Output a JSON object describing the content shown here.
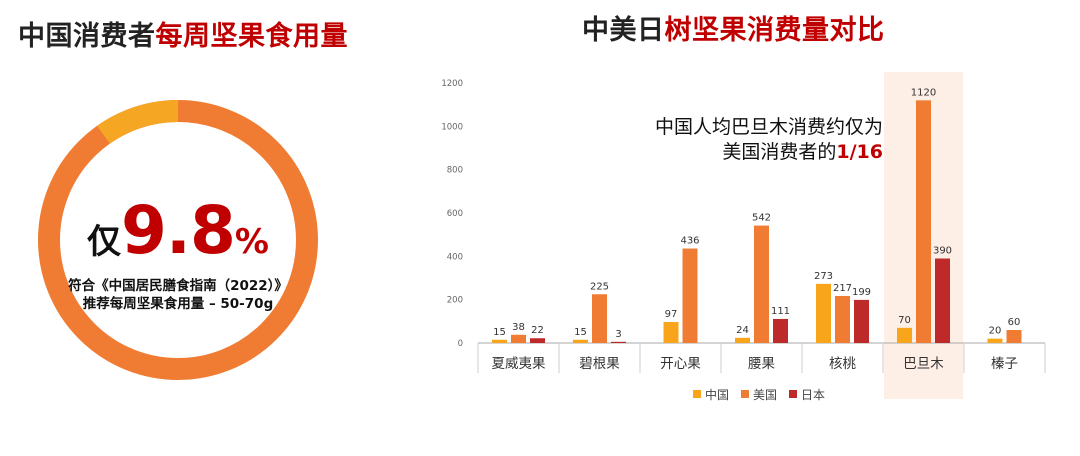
{
  "left": {
    "title_black": "中国消费者",
    "title_red": "每周坚果食用量",
    "prefix": "仅",
    "value": "9.8",
    "unit": "%",
    "guide_line1": "符合《中国居民膳食指南（2022）》",
    "guide_line2": "推荐每周坚果食用量 – 50-70g",
    "share": 9.8,
    "colors": {
      "share": "#f5a623",
      "rest": "#f07c33"
    }
  },
  "right": {
    "title_black": "中美日",
    "title_red": "树坚果消费量对比",
    "annotation_line1": "中国人均巴旦木消费约仅为",
    "annotation_line2_prefix": "美国消费者的",
    "annotation_line2_red": "1/16"
  },
  "chart_data": {
    "type": "bar",
    "categories": [
      "夏威夷果",
      "碧根果",
      "开心果",
      "腰果",
      "核桃",
      "巴旦木",
      "榛子"
    ],
    "series": [
      {
        "name": "中国",
        "color": "#f9a51b",
        "values": [
          15,
          15,
          97,
          24,
          273,
          70,
          20
        ]
      },
      {
        "name": "美国",
        "color": "#f07c33",
        "values": [
          38,
          225,
          436,
          542,
          217,
          1120,
          60
        ]
      },
      {
        "name": "日本",
        "color": "#be2a2a",
        "values": [
          22,
          3,
          null,
          111,
          199,
          390,
          null
        ]
      }
    ],
    "yticks": [
      0,
      200,
      400,
      600,
      800,
      1000,
      1200
    ],
    "ylim": [
      0,
      1200
    ],
    "highlight_category": "巴旦木",
    "highlight_color": "#fdeee6",
    "legend_position": "bottom"
  }
}
